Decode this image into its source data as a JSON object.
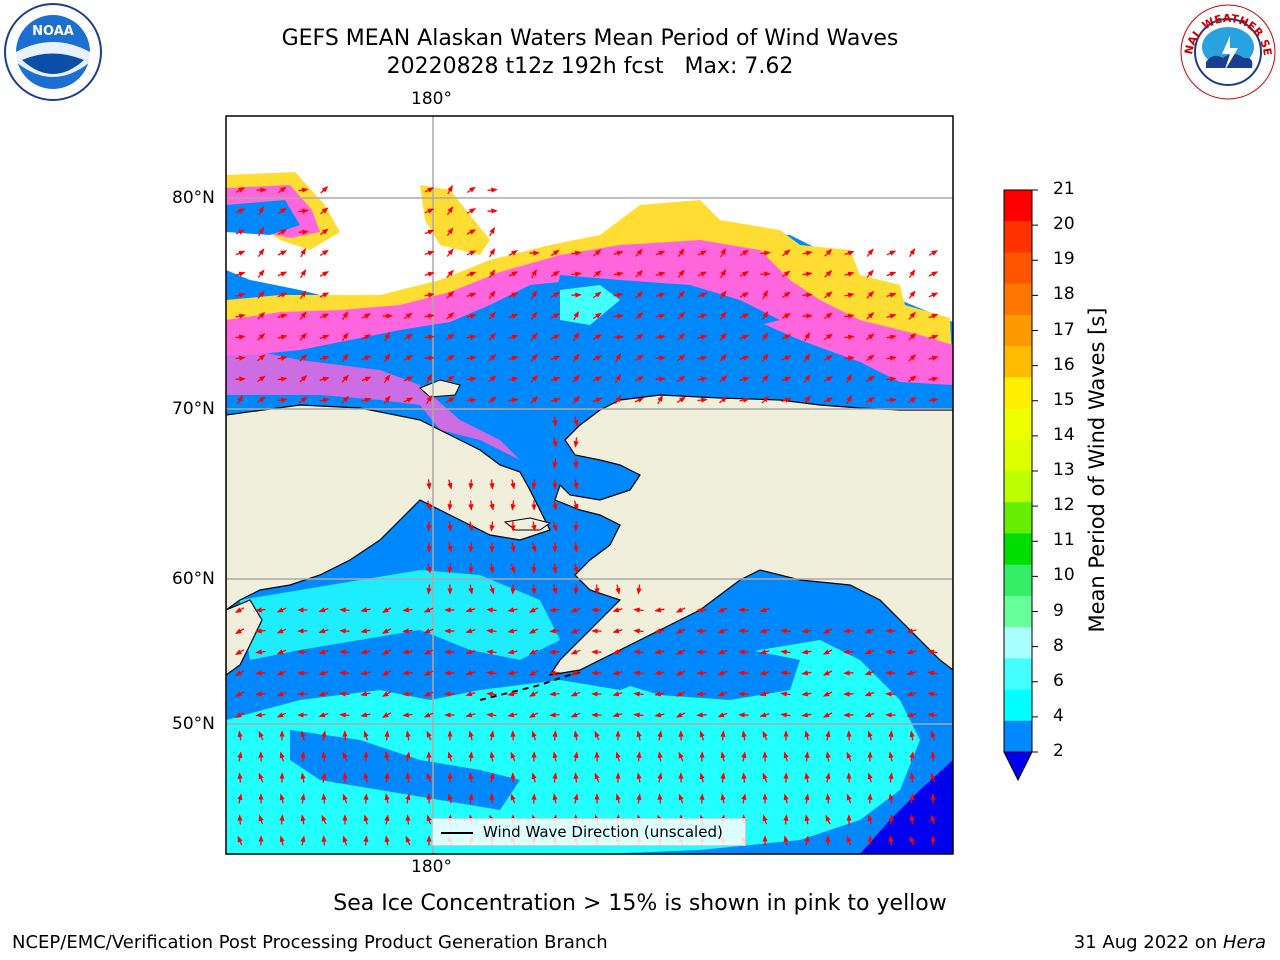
{
  "title_line1": "GEFS MEAN Alaskan Waters Mean Period of Wind Waves",
  "title_line2": "20220828 t12z 192h fcst   Max: 7.62",
  "lon_label_top": "180°",
  "lon_label_bottom": "180°",
  "lat_labels": [
    "80°N",
    "70°N",
    "60°N",
    "50°N"
  ],
  "legend_text": "Wind Wave Direction (unscaled)",
  "colorbar": {
    "label": "Mean Period of Wind Waves [s]",
    "ticks": [
      "21",
      "20",
      "19",
      "18",
      "17",
      "16",
      "15",
      "14",
      "13",
      "12",
      "11",
      "10",
      "9",
      "8",
      "6",
      "4",
      "2"
    ],
    "colors": [
      "#ff0000",
      "#ff3300",
      "#ff5500",
      "#ff7700",
      "#ff9900",
      "#ffbb00",
      "#ffee00",
      "#eeff00",
      "#ddff00",
      "#bbff00",
      "#66ee00",
      "#00dd00",
      "#33ee66",
      "#66ff99",
      "#aaffff",
      "#44ffff",
      "#00ffff",
      "#0088ff"
    ],
    "extend_color": "#0000ee"
  },
  "map_colors": {
    "land": "#efefdc",
    "ocean_main": "#0088ff",
    "ocean_light": "#22ffff",
    "ocean_deep": "#0000ee",
    "ice_pink": "#ff66dd",
    "ice_yellow": "#ffdd33",
    "arrow": "#ff0000"
  },
  "logos": {
    "noaa": "NOAA",
    "nws": "NATIONAL WEATHER SERVICE"
  },
  "footer_note": "Sea Ice Concentration > 15% is shown in pink to yellow",
  "footer_left": "NCEP/EMC/Verification Post Processing Product Generation Branch",
  "footer_right_date": "31 Aug 2022 on ",
  "footer_right_host": "Hera"
}
